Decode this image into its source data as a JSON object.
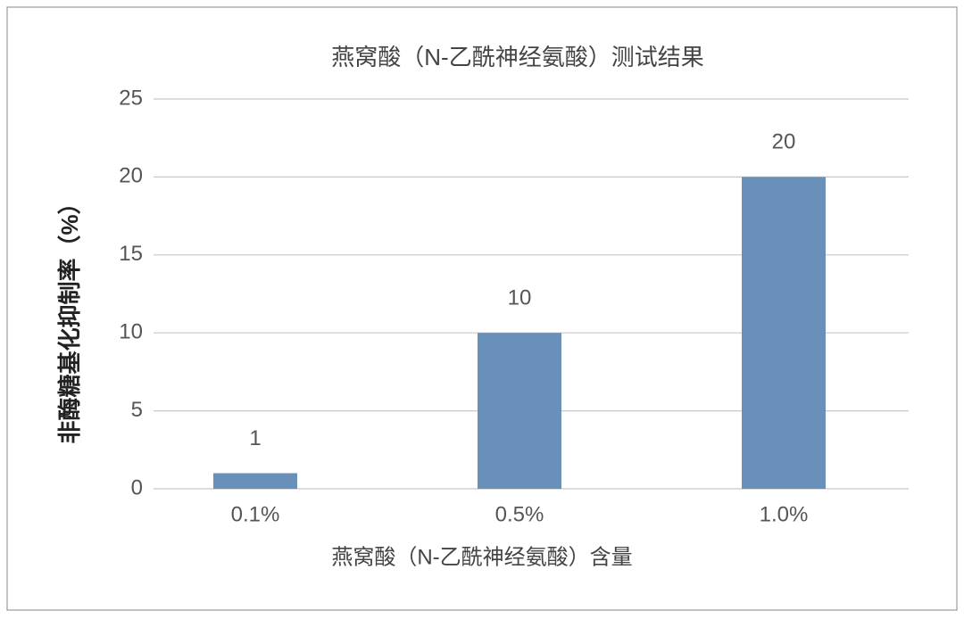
{
  "chart_data": {
    "type": "bar",
    "title": "燕窝酸（N-乙酰神经氨酸）测试结果",
    "x_label": "燕窝酸（N-乙酰神经氨酸）含量",
    "y_label": "非酶糖基化抑制率（%）",
    "categories": [
      "0.1%",
      "0.5%",
      "1.0%"
    ],
    "values": [
      1,
      10,
      20
    ],
    "color": "#6990b8",
    "ylim": [
      0,
      25
    ],
    "yticks": [
      0,
      5,
      10,
      15,
      20,
      25
    ],
    "grid": true,
    "data_labels": true
  }
}
